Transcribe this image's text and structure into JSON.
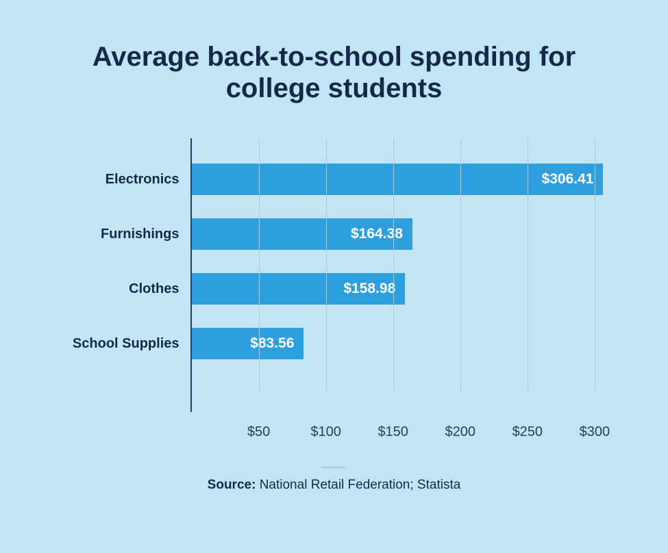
{
  "background_color": "#c2e5f6",
  "title": {
    "text": "Average back-to-school spending for college students",
    "color": "#15284a",
    "fontsize": 40
  },
  "chart": {
    "type": "bar-horizontal",
    "x_max": 310,
    "axis_color": "#2a3c5a",
    "grid_color": "#a7cde0",
    "bar_color": "#2d9fde",
    "bar_label_color": "#ffffff",
    "bar_label_fontsize": 21,
    "category_label_color": "#15284a",
    "category_label_fontsize": 20,
    "tick_label_color": "#2a3c5a",
    "tick_label_fontsize": 20,
    "categories": [
      {
        "name": "Electronics",
        "value": 306.41,
        "display": "$306.41"
      },
      {
        "name": "Furnishings",
        "value": 164.38,
        "display": "$164.38"
      },
      {
        "name": "Clothes",
        "value": 158.98,
        "display": "$158.98"
      },
      {
        "name": "School Supplies",
        "value": 83.56,
        "display": "$83.56"
      }
    ],
    "xticks": [
      {
        "value": 50,
        "label": "$50"
      },
      {
        "value": 100,
        "label": "$100"
      },
      {
        "value": 150,
        "label": "$150"
      },
      {
        "value": 200,
        "label": "$200"
      },
      {
        "value": 250,
        "label": "$250"
      },
      {
        "value": 300,
        "label": "$300"
      }
    ]
  },
  "source": {
    "label": "Source:",
    "text": " National Retail Federation; Statista",
    "color": "#15284a",
    "fontsize": 19,
    "divider_color": "#a7cde0"
  }
}
